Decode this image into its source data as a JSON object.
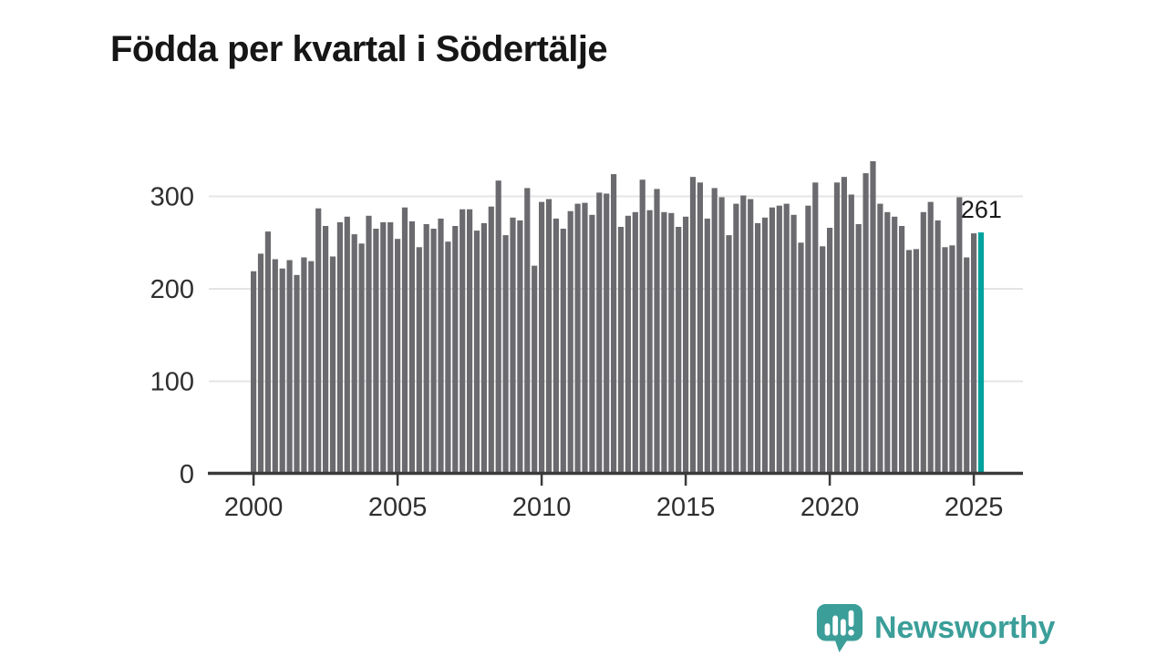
{
  "title": "Födda per kvartal i Södertälje",
  "branding": {
    "name": "Newsworthy",
    "icon": "newsworthy-speech-bubble-icon",
    "color": "#3b9e99"
  },
  "colors": {
    "background": "#ffffff",
    "bar": "#6b6b6f",
    "highlight": "#00a29d",
    "grid": "#e4e4e4",
    "axis": "#3a3a3a",
    "tick_label": "#2f2f2f",
    "annotation": "#191919",
    "title": "#161616"
  },
  "chart_data": {
    "type": "bar",
    "title": "Födda per kvartal i Södertälje",
    "x_unit": "quarter",
    "x_start": "2000 Q1",
    "x_end": "2025 Q2",
    "xticks": [
      "2000",
      "2005",
      "2010",
      "2015",
      "2020",
      "2025"
    ],
    "yticks": [
      0,
      100,
      200,
      300
    ],
    "ylim": [
      0,
      350
    ],
    "grid": "horizontal",
    "legend": "none",
    "highlight": "last",
    "last_value_label": "261",
    "values": [
      219,
      238,
      262,
      232,
      222,
      231,
      215,
      234,
      230,
      287,
      268,
      235,
      272,
      278,
      259,
      249,
      279,
      265,
      272,
      272,
      254,
      288,
      273,
      245,
      270,
      265,
      276,
      251,
      268,
      286,
      286,
      263,
      271,
      289,
      317,
      258,
      277,
      274,
      309,
      225,
      294,
      297,
      276,
      265,
      284,
      292,
      293,
      280,
      304,
      303,
      324,
      267,
      279,
      283,
      318,
      285,
      308,
      283,
      282,
      267,
      278,
      321,
      315,
      276,
      309,
      299,
      258,
      292,
      301,
      297,
      271,
      277,
      288,
      290,
      292,
      280,
      250,
      290,
      315,
      246,
      266,
      315,
      321,
      302,
      270,
      325,
      338,
      292,
      283,
      278,
      268,
      242,
      243,
      283,
      294,
      274,
      245,
      247,
      299,
      234,
      260,
      261
    ]
  }
}
